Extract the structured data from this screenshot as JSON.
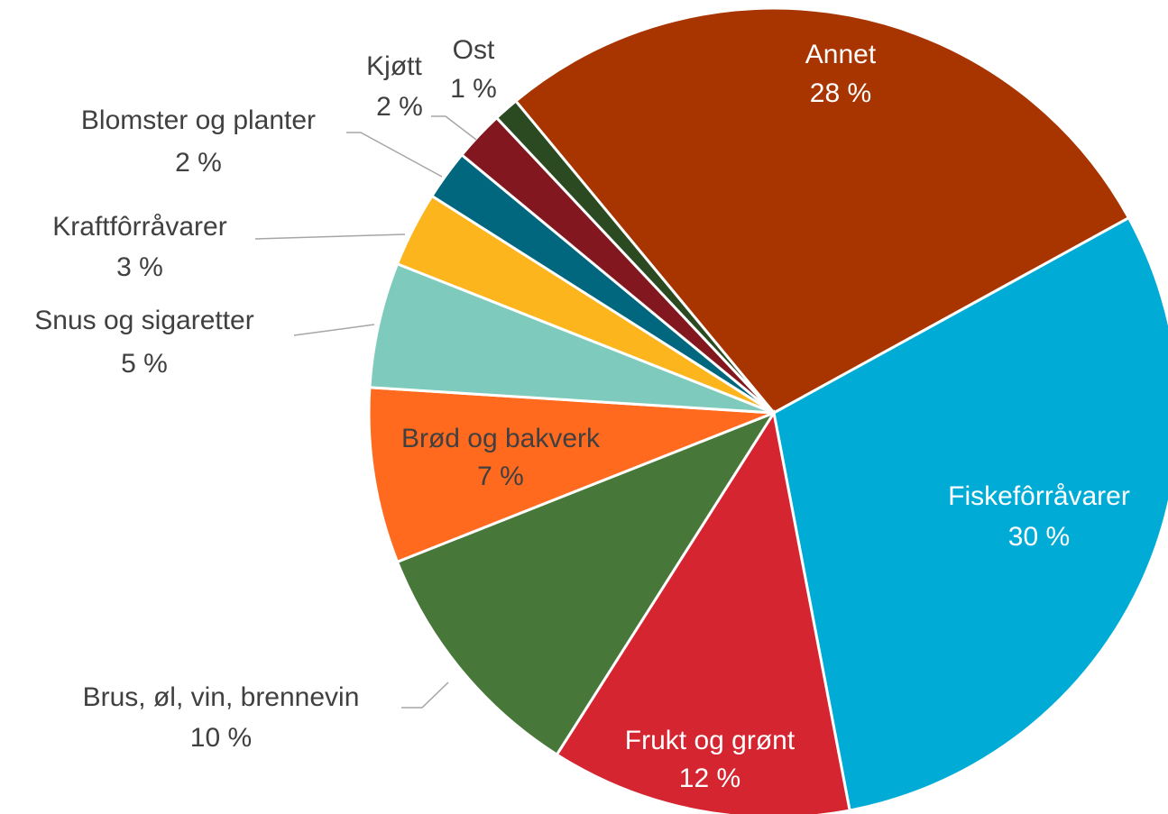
{
  "chart_data": {
    "type": "pie",
    "categories": [
      "Annet",
      "Fiskefôrråvarer",
      "Frukt og grønt",
      "Brus, øl, vin, brennevin",
      "Brød og bakverk",
      "Snus og sigaretter",
      "Kraftfôrråvarer",
      "Blomster og planter",
      "Kjøtt",
      "Ost"
    ],
    "values": [
      28,
      30,
      12,
      10,
      7,
      5,
      3,
      2,
      2,
      1
    ],
    "value_labels": [
      "28 %",
      "30 %",
      "12 %",
      "10 %",
      "7 %",
      "5 %",
      "3 %",
      "2 %",
      "2 %",
      "1 %"
    ],
    "colors": [
      "#a83400",
      "#00acd6",
      "#d42530",
      "#48773a",
      "#ff6a1f",
      "#7ecbbd",
      "#fdb51e",
      "#00677f",
      "#82171f",
      "#2c4a21"
    ]
  }
}
